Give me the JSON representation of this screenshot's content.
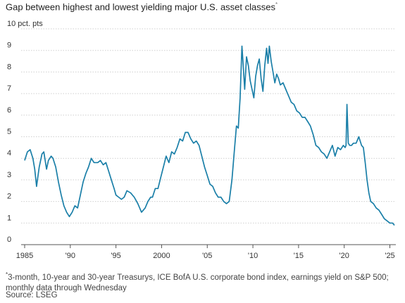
{
  "title": "Gap between highest and lowest yielding major U.S. asset classes",
  "title_marker": "*",
  "note_marker": "*",
  "note": "3-month, 10-year and 30-year Treasurys, ICE BofA U.S. corporate bond index, earnings yield on S&P 500; monthly data through Wednesday",
  "source": "Source: LSEG",
  "colors": {
    "line": "#1a7fa8",
    "grid": "#cfcfcf"
  },
  "chart_data": {
    "type": "line",
    "title": "Gap between highest and lowest yielding major U.S. asset classes",
    "xlabel": "",
    "ylabel": "",
    "y_unit_label": "10 pct. pts",
    "xlim": [
      1985,
      2025.5
    ],
    "ylim": [
      0,
      10
    ],
    "grid": true,
    "y_ticks": [
      {
        "value": 0,
        "label": "0"
      },
      {
        "value": 1,
        "label": "1"
      },
      {
        "value": 2,
        "label": "2"
      },
      {
        "value": 3,
        "label": "3"
      },
      {
        "value": 4,
        "label": "4"
      },
      {
        "value": 5,
        "label": "5"
      },
      {
        "value": 6,
        "label": "6"
      },
      {
        "value": 7,
        "label": "7"
      },
      {
        "value": 8,
        "label": "8"
      },
      {
        "value": 9,
        "label": "9"
      }
    ],
    "x_ticks": [
      {
        "value": 1985,
        "label": "1985"
      },
      {
        "value": 1990,
        "label": "'90"
      },
      {
        "value": 1995,
        "label": "'95"
      },
      {
        "value": 2000,
        "label": "2000"
      },
      {
        "value": 2005,
        "label": "'05"
      },
      {
        "value": 2010,
        "label": "'10"
      },
      {
        "value": 2015,
        "label": "'15"
      },
      {
        "value": 2020,
        "label": "'20"
      },
      {
        "value": 2025,
        "label": "'25"
      }
    ],
    "series": [
      {
        "x": [
          1985.0,
          1985.3,
          1985.6,
          1985.9,
          1986.1,
          1986.3,
          1986.6,
          1986.9,
          1987.1,
          1987.4,
          1987.6,
          1987.9,
          1988.1,
          1988.4,
          1988.7,
          1989.0,
          1989.3,
          1989.6,
          1989.9,
          1990.2,
          1990.5,
          1990.8,
          1991.1,
          1991.4,
          1991.7,
          1992.0,
          1992.3,
          1992.6,
          1993.0,
          1993.3,
          1993.6,
          1993.9,
          1994.2,
          1994.5,
          1994.8,
          1995.0,
          1995.3,
          1995.6,
          1995.9,
          1996.2,
          1996.6,
          1997.0,
          1997.4,
          1997.8,
          1998.2,
          1998.5,
          1998.8,
          1999.0,
          1999.3,
          1999.6,
          1999.9,
          2000.2,
          2000.5,
          2000.8,
          2001.1,
          2001.4,
          2001.7,
          2002.0,
          2002.3,
          2002.6,
          2002.9,
          2003.2,
          2003.5,
          2003.8,
          2004.1,
          2004.4,
          2004.7,
          2005.0,
          2005.3,
          2005.6,
          2005.9,
          2006.2,
          2006.5,
          2006.8,
          2007.1,
          2007.4,
          2007.7,
          2008.0,
          2008.2,
          2008.4,
          2008.6,
          2008.8,
          2008.95,
          2009.1,
          2009.3,
          2009.5,
          2009.7,
          2009.9,
          2010.1,
          2010.3,
          2010.5,
          2010.7,
          2010.9,
          2011.1,
          2011.3,
          2011.5,
          2011.65,
          2011.8,
          2012.0,
          2012.2,
          2012.4,
          2012.6,
          2012.8,
          2013.0,
          2013.3,
          2013.6,
          2013.9,
          2014.2,
          2014.5,
          2014.8,
          2015.1,
          2015.4,
          2015.7,
          2016.0,
          2016.3,
          2016.6,
          2016.9,
          2017.2,
          2017.5,
          2017.8,
          2018.1,
          2018.4,
          2018.7,
          2019.0,
          2019.3,
          2019.6,
          2019.9,
          2020.1,
          2020.2,
          2020.3,
          2020.45,
          2020.6,
          2020.8,
          2021.0,
          2021.3,
          2021.6,
          2021.9,
          2022.1,
          2022.3,
          2022.5,
          2022.7,
          2022.9,
          2023.2,
          2023.5,
          2023.8,
          2024.1,
          2024.4,
          2024.7,
          2025.0,
          2025.3,
          2025.5
        ],
        "y": [
          3.9,
          4.3,
          4.4,
          4.0,
          3.5,
          2.7,
          3.6,
          4.2,
          4.3,
          3.5,
          3.9,
          4.1,
          4.0,
          3.6,
          2.9,
          2.3,
          1.8,
          1.5,
          1.3,
          1.5,
          1.8,
          1.7,
          2.3,
          2.9,
          3.3,
          3.6,
          4.0,
          3.8,
          3.8,
          3.9,
          3.7,
          3.8,
          3.4,
          3.0,
          2.6,
          2.3,
          2.2,
          2.1,
          2.2,
          2.5,
          2.4,
          2.2,
          1.9,
          1.5,
          1.7,
          2.0,
          2.2,
          2.2,
          2.6,
          2.6,
          3.1,
          3.6,
          4.1,
          3.8,
          4.3,
          4.2,
          4.5,
          4.9,
          4.8,
          5.2,
          5.2,
          4.9,
          4.7,
          4.8,
          4.6,
          4.1,
          3.6,
          3.2,
          2.8,
          2.7,
          2.4,
          2.2,
          2.2,
          2.0,
          1.9,
          2.0,
          3.0,
          4.5,
          5.5,
          5.4,
          6.8,
          9.2,
          8.2,
          7.2,
          8.7,
          8.3,
          7.6,
          7.2,
          6.8,
          7.8,
          8.3,
          8.6,
          7.7,
          7.1,
          8.3,
          9.1,
          8.4,
          9.2,
          8.5,
          8.0,
          7.5,
          7.9,
          7.7,
          7.4,
          7.5,
          7.2,
          6.9,
          6.6,
          6.5,
          6.2,
          6.1,
          5.9,
          5.9,
          5.7,
          5.5,
          5.1,
          4.6,
          4.5,
          4.3,
          4.2,
          4.0,
          4.3,
          4.6,
          4.1,
          4.5,
          4.4,
          4.6,
          4.5,
          4.6,
          6.5,
          4.7,
          4.6,
          4.6,
          4.7,
          4.7,
          5.0,
          4.6,
          4.5,
          3.8,
          3.0,
          2.4,
          2.0,
          1.9,
          1.7,
          1.6,
          1.4,
          1.2,
          1.1,
          1.0,
          1.0,
          0.9
        ]
      }
    ]
  }
}
